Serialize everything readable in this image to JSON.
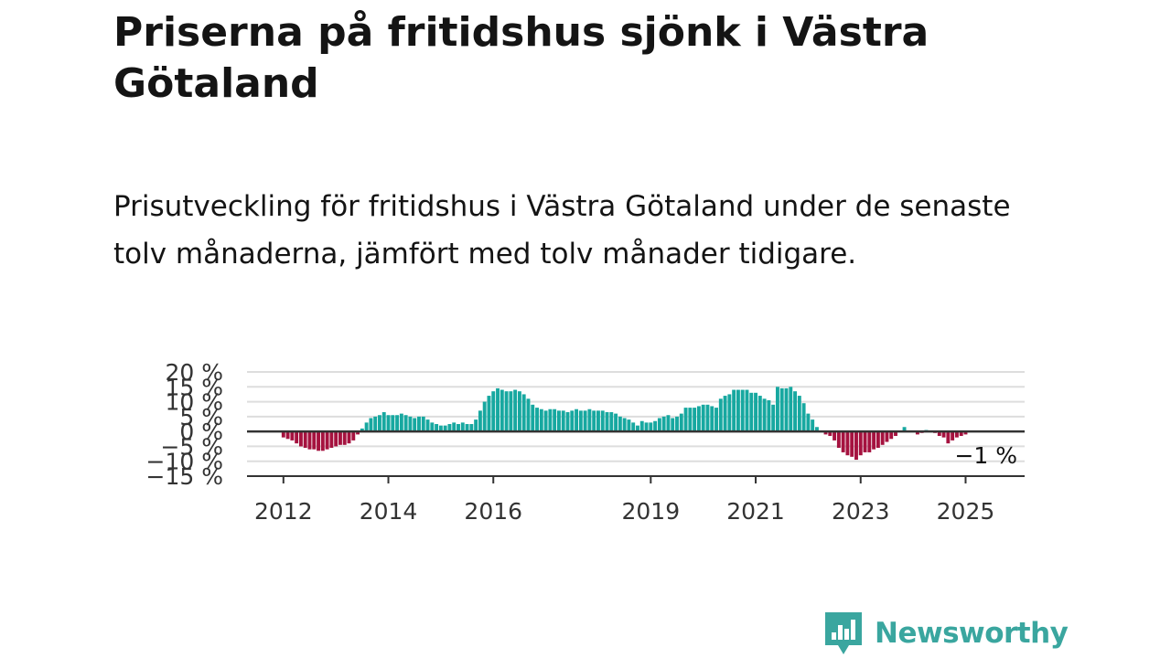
{
  "title": "Priserna på fritidshus sjönk i Västra Götaland",
  "subtitle": "Prisutveckling för fritidshus i Västra Götaland under de senaste tolv månaderna, jämfört med tolv månader tidigare.",
  "brand": {
    "name": "Newsworthy",
    "color": "#3aa69f"
  },
  "colors": {
    "positive": "#17a8a0",
    "negative": "#a5123f",
    "grid": "#dddddd",
    "axis": "#333333"
  },
  "chart_data": {
    "type": "bar",
    "title": "",
    "xlabel": "",
    "ylabel": "",
    "ylim": [
      -15,
      20
    ],
    "yticks": [
      20,
      15,
      10,
      5,
      0,
      -5,
      -10,
      -15
    ],
    "ytick_labels": [
      "20 %",
      "15 %",
      "10 %",
      "5 %",
      "0 %",
      "−5 %",
      "−10 %",
      "−15 %"
    ],
    "xticks": [
      {
        "label": "2012",
        "index": 0
      },
      {
        "label": "2014",
        "index": 24
      },
      {
        "label": "2016",
        "index": 48
      },
      {
        "label": "2019",
        "index": 84
      },
      {
        "label": "2021",
        "index": 108
      },
      {
        "label": "2023",
        "index": 132
      },
      {
        "label": "2025",
        "index": 156
      }
    ],
    "start": "2012-01",
    "frequency": "monthly",
    "last_value_label": "−1 %",
    "values": [
      -2,
      -2.5,
      -3,
      -4,
      -5,
      -5.5,
      -6,
      -6,
      -6.5,
      -6.5,
      -6,
      -5.5,
      -5,
      -4.5,
      -4.5,
      -4,
      -3,
      -1,
      1,
      3,
      4.5,
      5,
      5.5,
      6.5,
      5.5,
      5.5,
      5.5,
      6,
      5.5,
      5,
      4.5,
      5,
      5,
      4,
      3,
      2.5,
      2,
      2,
      2.5,
      3,
      2.5,
      3,
      2.5,
      2.5,
      4,
      7,
      10,
      12,
      13.5,
      14.5,
      14,
      13.5,
      13.5,
      14,
      13.5,
      12.5,
      11,
      9,
      8,
      7.5,
      7,
      7.5,
      7.5,
      7,
      7,
      6.5,
      7,
      7.5,
      7,
      7,
      7.5,
      7,
      7,
      7,
      6.5,
      6.5,
      6,
      5,
      4.5,
      4,
      3,
      2,
      3.5,
      3,
      3,
      3.5,
      4.5,
      5,
      5.5,
      4.5,
      5,
      6,
      8,
      8,
      8,
      8.5,
      9,
      9,
      8.5,
      8,
      11,
      12,
      12.5,
      14,
      14,
      14,
      14,
      13,
      13,
      12,
      11,
      10.5,
      9,
      15,
      14.5,
      14.5,
      15,
      13.5,
      12,
      9.5,
      6,
      4,
      1.5,
      0,
      -1,
      -1.5,
      -3,
      -5.5,
      -7,
      -8,
      -8.5,
      -9.5,
      -8,
      -7,
      -7,
      -6,
      -5.5,
      -4.5,
      -3.5,
      -2.5,
      -1.5,
      0,
      1.5,
      0,
      0,
      -1,
      -0.5,
      0.5,
      0,
      -0.5,
      -1.5,
      -2,
      -4,
      -3,
      -2,
      -1.5,
      -1
    ]
  }
}
